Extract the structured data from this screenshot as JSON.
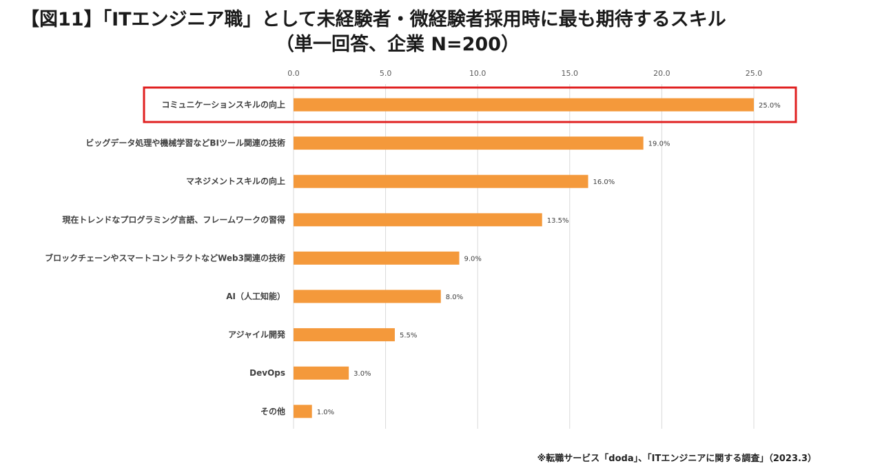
{
  "title_line1": "【図11】「ITエンジニア職」として未経験者・微経験者採用時に最も期待するスキル",
  "title_line2": "（単一回答、企業 N=200）",
  "source": "※転職サービス「doda」、「ITエンジニアに関する調査」（2023.3）",
  "chart_data": {
    "type": "bar",
    "orientation": "horizontal",
    "categories": [
      "コミュニケーションスキルの向上",
      "ビッグデータ処理や機械学習などBIツール関連の技術",
      "マネジメントスキルの向上",
      "現在トレンドなプログラミング言語、フレームワークの習得",
      "ブロックチェーンやスマートコントラクトなどWeb3関連の技術",
      "AI（人工知能）",
      "アジャイル開発",
      "DevOps",
      "その他"
    ],
    "values": [
      25.0,
      19.0,
      16.0,
      13.5,
      9.0,
      8.0,
      5.5,
      3.0,
      1.0
    ],
    "data_labels": [
      "25.0%",
      "19.0%",
      "16.0%",
      "13.5%",
      "9.0%",
      "8.0%",
      "5.5%",
      "3.0%",
      "1.0%"
    ],
    "xticks": [
      "0.0",
      "5.0",
      "10.0",
      "15.0",
      "20.0",
      "25.0"
    ],
    "xlim": [
      0,
      25
    ],
    "highlighted_category_index": 0,
    "bar_color": "#F4993B",
    "highlight_color": "#E02020",
    "grid": true
  }
}
